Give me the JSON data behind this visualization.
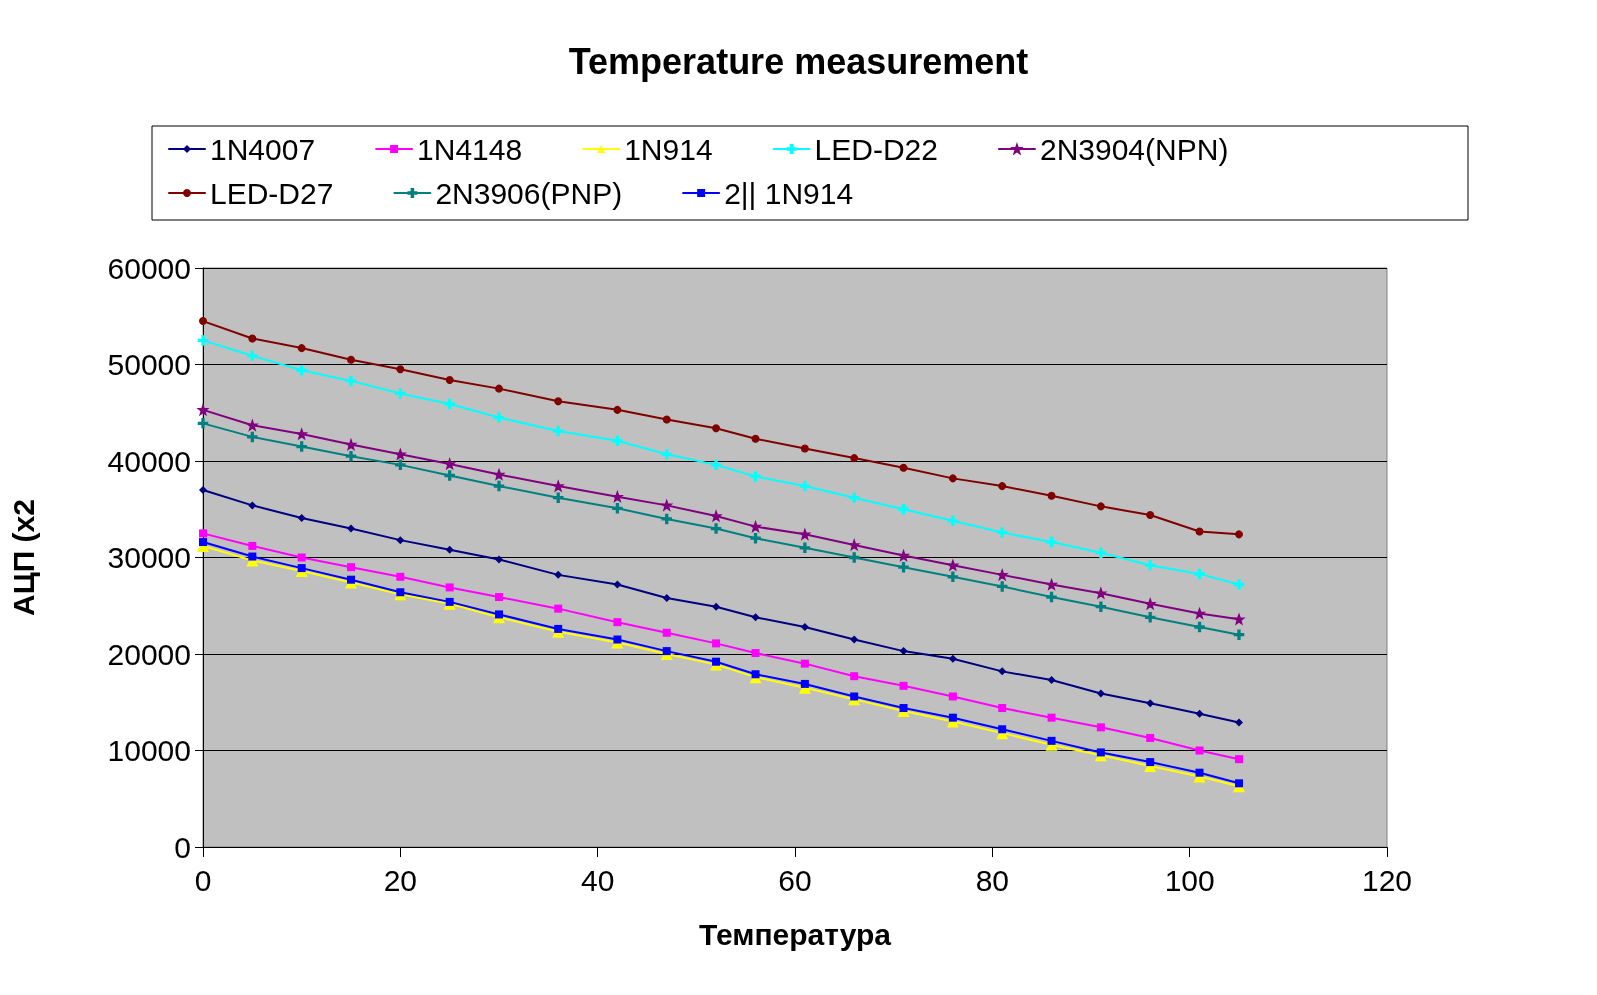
{
  "chart_data": {
    "type": "line",
    "title": "Temperature measurement",
    "xlabel": "Температура",
    "ylabel": "АЦП (x2",
    "x": [
      0,
      5,
      10,
      15,
      20,
      25,
      30,
      36,
      42,
      47,
      52,
      56,
      61,
      66,
      71,
      76,
      81,
      86,
      91,
      96,
      101,
      105
    ],
    "xlim": [
      0,
      120
    ],
    "xticks": [
      0,
      20,
      40,
      60,
      80,
      100,
      120
    ],
    "ylim": [
      0,
      60000
    ],
    "yticks": [
      0,
      10000,
      20000,
      30000,
      40000,
      50000,
      60000
    ],
    "grid": "y",
    "legend": "top",
    "line_style": "solid",
    "series": [
      {
        "name": "1N4007",
        "color": "#000080",
        "marker": "diamond",
        "values": [
          37000,
          35400,
          34100,
          33000,
          31800,
          30800,
          29800,
          28200,
          27200,
          25800,
          24900,
          23800,
          22800,
          21500,
          20300,
          19500,
          18200,
          17300,
          15900,
          14900,
          13800,
          12900
        ]
      },
      {
        "name": "1N4148",
        "color": "#ff00ff",
        "marker": "square",
        "values": [
          32500,
          31200,
          30000,
          29000,
          28000,
          26900,
          25900,
          24700,
          23300,
          22200,
          21100,
          20100,
          19000,
          17700,
          16700,
          15600,
          14400,
          13400,
          12400,
          11300,
          10000,
          9100
        ]
      },
      {
        "name": "1N914",
        "color": "#ffff00",
        "marker": "triangle",
        "values": [
          31200,
          29700,
          28600,
          27400,
          26200,
          25200,
          23800,
          22300,
          21200,
          20000,
          18900,
          17600,
          16500,
          15300,
          14100,
          13000,
          11800,
          10600,
          9500,
          8400,
          7300,
          6300
        ]
      },
      {
        "name": "LED-D22",
        "color": "#00ffff",
        "marker": "cross",
        "values": [
          52500,
          50900,
          49400,
          48300,
          47000,
          45900,
          44500,
          43100,
          42100,
          40700,
          39600,
          38400,
          37400,
          36200,
          35000,
          33800,
          32600,
          31600,
          30500,
          29200,
          28300,
          27200
        ]
      },
      {
        "name": "2N3904(NPN)",
        "color": "#800080",
        "marker": "star",
        "values": [
          45300,
          43700,
          42800,
          41700,
          40700,
          39700,
          38600,
          37400,
          36300,
          35400,
          34300,
          33200,
          32400,
          31300,
          30200,
          29200,
          28200,
          27200,
          26300,
          25200,
          24200,
          23600
        ]
      },
      {
        "name": "LED-D27",
        "color": "#800000",
        "marker": "circle",
        "values": [
          54500,
          52700,
          51700,
          50500,
          49500,
          48400,
          47500,
          46200,
          45300,
          44300,
          43400,
          42300,
          41300,
          40300,
          39300,
          38200,
          37400,
          36400,
          35300,
          34400,
          32700,
          32400
        ]
      },
      {
        "name": "2N3906(PNP)",
        "color": "#008080",
        "marker": "cross",
        "values": [
          43900,
          42500,
          41500,
          40500,
          39600,
          38500,
          37400,
          36200,
          35100,
          34000,
          33000,
          32000,
          31000,
          30000,
          29000,
          28000,
          27000,
          25900,
          24900,
          23800,
          22800,
          22000
        ]
      },
      {
        "name": "2|| 1N914",
        "color": "#0000ff",
        "marker": "square",
        "values": [
          31600,
          30100,
          28900,
          27700,
          26400,
          25400,
          24100,
          22600,
          21500,
          20300,
          19200,
          17900,
          16900,
          15600,
          14400,
          13400,
          12200,
          11000,
          9800,
          8800,
          7700,
          6600
        ]
      }
    ]
  }
}
